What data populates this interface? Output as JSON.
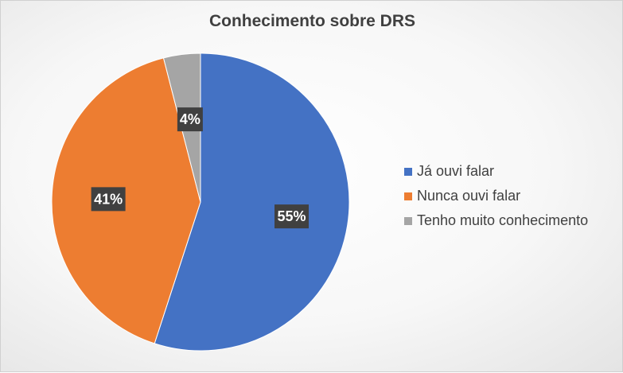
{
  "chart_data": {
    "type": "pie",
    "title": "Conhecimento sobre DRS",
    "slices": [
      {
        "label": "Já ouvi falar",
        "value": 55,
        "data_label": "55%",
        "color": "#4472C4"
      },
      {
        "label": "Nunca ouvi falar",
        "value": 41,
        "data_label": "41%",
        "color": "#ED7D31"
      },
      {
        "label": "Tenho muito conhecimento",
        "value": 4,
        "data_label": "4%",
        "color": "#A5A5A5"
      }
    ],
    "legend_position": "right",
    "start_angle": "12 o'clock, clockwise"
  }
}
